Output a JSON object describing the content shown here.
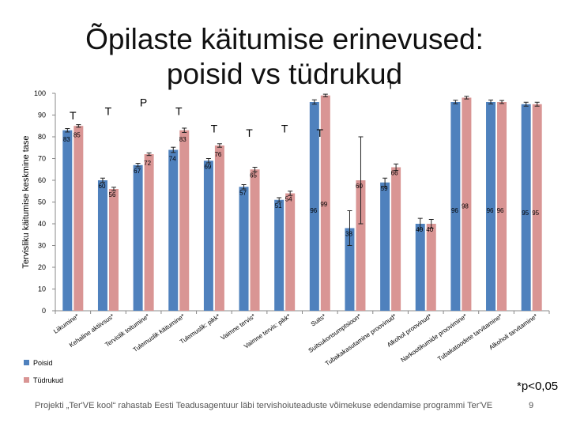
{
  "slide": {
    "title_line1": "Õpilaste käitumise erinevused:",
    "title_line2": "poisid vs tüdrukud",
    "footer": "Projekti „Ter'VE kool“ rahastab Eesti Teadusagentuur läbi tervishoiuteaduste võimekuse edendamise programmi Ter'VE",
    "p_note": "*p<0,05",
    "page_number": "9"
  },
  "chart_data": {
    "type": "bar",
    "title": "",
    "ylabel": "Tervisliku käitumise keskmine tase",
    "ylim": [
      0,
      100
    ],
    "yticks": [
      0,
      10,
      20,
      30,
      40,
      50,
      60,
      70,
      80,
      90,
      100
    ],
    "grid": false,
    "legend_position": "bottom-left",
    "colors": {
      "Poisid": "#4f81bd",
      "Tüdrukud": "#d99594"
    },
    "categories": [
      "Liikumine*",
      "Kehaline aktiivsus*",
      "Tervislik toitumine*",
      "Tulemuslik käitumine*",
      "Tulemuslik: pikk*",
      "Vaimne tervis*",
      "Vaimne tervis: pikk*",
      "Suits*",
      "Suitsukonsumptsioon*",
      "Tubakakasutamine proovinud*",
      "Alkohol proovinud*",
      "Narkootikumide proovimine*",
      "Tubakatoodete tarvitamine*",
      "Alkoholi tarvitamine*"
    ],
    "series": [
      {
        "name": "Poisid",
        "values": [
          83,
          60,
          67,
          74,
          69,
          57,
          51,
          96,
          38,
          59,
          40,
          96,
          96,
          95
        ],
        "err": [
          0.8,
          1.0,
          0.8,
          1.2,
          1.0,
          1.0,
          1.0,
          1.0,
          8.0,
          2.0,
          2.5,
          0.8,
          0.9,
          0.9
        ]
      },
      {
        "name": "Tüdrukud",
        "values": [
          85,
          56,
          72,
          83,
          76,
          65,
          54,
          99,
          60,
          66,
          40,
          98,
          96,
          95
        ],
        "err": [
          0.6,
          0.8,
          0.6,
          1.0,
          0.8,
          1.0,
          1.0,
          0.6,
          20.0,
          1.5,
          2.0,
          0.6,
          0.7,
          0.9
        ]
      }
    ],
    "significance_marks": [
      "T",
      "T",
      "T",
      "T",
      "P",
      "T",
      "T",
      "T",
      "T"
    ],
    "significance_heights": [
      88,
      90,
      90,
      82,
      94,
      80,
      80,
      102,
      82
    ],
    "significance_x_categories": [
      0,
      3,
      1,
      4,
      2,
      5,
      7,
      9,
      6
    ]
  }
}
